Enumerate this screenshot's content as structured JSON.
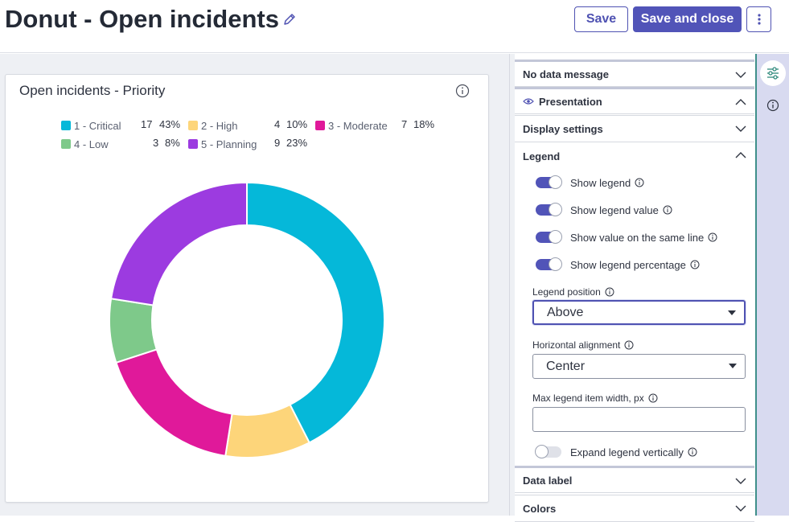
{
  "header": {
    "title": "Donut - Open incidents",
    "save_label": "Save",
    "save_close_label": "Save and close"
  },
  "widget": {
    "title": "Open incidents - Priority",
    "legend": [
      {
        "label": "1 - Critical",
        "count": "17",
        "pct": "43%",
        "color": "#05b8d9"
      },
      {
        "label": "2 - High",
        "count": "4",
        "pct": "10%",
        "color": "#fdd57a"
      },
      {
        "label": "3 - Moderate",
        "count": "7",
        "pct": "18%",
        "color": "#e0199a"
      },
      {
        "label": "4 - Low",
        "count": "3",
        "pct": "8%",
        "color": "#7ec98a"
      },
      {
        "label": "5 - Planning",
        "count": "9",
        "pct": "23%",
        "color": "#9c3be0"
      }
    ]
  },
  "chart_data": {
    "type": "pie",
    "categories": [
      "1 - Critical",
      "2 - High",
      "3 - Moderate",
      "4 - Low",
      "5 - Planning"
    ],
    "values": [
      17,
      4,
      7,
      3,
      9
    ],
    "percentages": [
      43,
      10,
      18,
      8,
      23
    ],
    "colors": [
      "#05b8d9",
      "#fdd57a",
      "#e0199a",
      "#7ec98a",
      "#9c3be0"
    ],
    "title": "Open incidents - Priority",
    "legend_position": "top"
  },
  "panel": {
    "no_data": "No data message",
    "presentation": "Presentation",
    "display_settings": "Display settings",
    "legend": "Legend",
    "toggles": {
      "show_legend": "Show legend",
      "show_legend_value": "Show legend value",
      "same_line": "Show value on the same line",
      "show_pct": "Show legend percentage",
      "expand": "Expand legend vertically"
    },
    "legend_position_label": "Legend position",
    "legend_position_value": "Above",
    "h_align_label": "Horizontal alignment",
    "h_align_value": "Center",
    "max_width_label": "Max legend item width, px",
    "max_width_value": "",
    "data_label": "Data label",
    "colors": "Colors"
  }
}
